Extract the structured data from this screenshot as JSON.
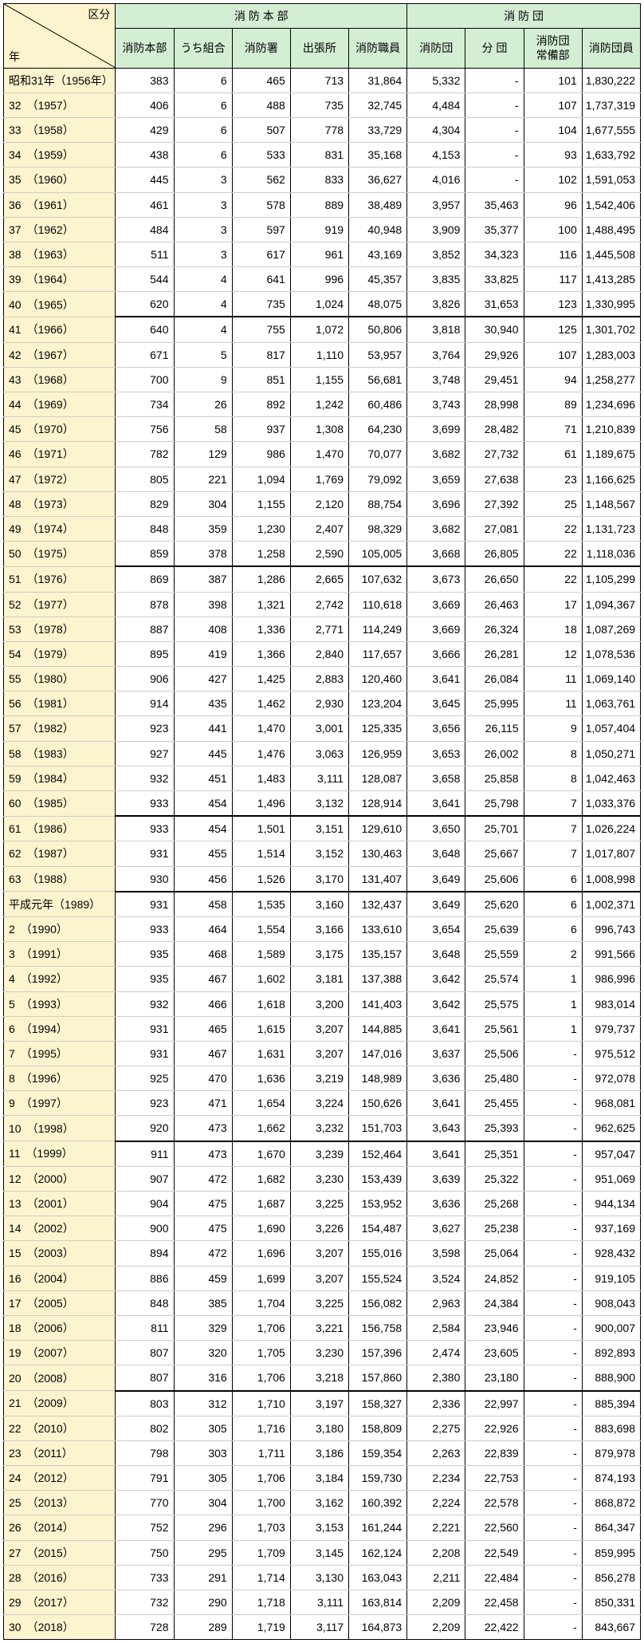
{
  "header": {
    "diag_top": "区分",
    "diag_bottom": "年",
    "group1": "消 防 本 部",
    "group2": "消 防 団",
    "cols": [
      "消防本部",
      "うち組合",
      "消防署",
      "出張所",
      "消防職員",
      "消防団",
      "分 団",
      "消防団\n常備部",
      "消防団員"
    ]
  },
  "separators": [
    10,
    20,
    30,
    33,
    43,
    53
  ],
  "rows": [
    {
      "y": "昭和31年（1956年）",
      "v": [
        "383",
        "6",
        "465",
        "713",
        "31,864",
        "5,332",
        "-",
        "101",
        "1,830,222"
      ]
    },
    {
      "y": "32　（1957）",
      "v": [
        "406",
        "6",
        "488",
        "735",
        "32,745",
        "4,484",
        "-",
        "107",
        "1,737,319"
      ]
    },
    {
      "y": "33　（1958）",
      "v": [
        "429",
        "6",
        "507",
        "778",
        "33,729",
        "4,304",
        "-",
        "104",
        "1,677,555"
      ]
    },
    {
      "y": "34　（1959）",
      "v": [
        "438",
        "6",
        "533",
        "831",
        "35,168",
        "4,153",
        "-",
        "93",
        "1,633,792"
      ]
    },
    {
      "y": "35　（1960）",
      "v": [
        "445",
        "3",
        "562",
        "833",
        "36,627",
        "4,016",
        "-",
        "102",
        "1,591,053"
      ]
    },
    {
      "y": "36　（1961）",
      "v": [
        "461",
        "3",
        "578",
        "889",
        "38,489",
        "3,957",
        "35,463",
        "96",
        "1,542,406"
      ]
    },
    {
      "y": "37　（1962）",
      "v": [
        "484",
        "3",
        "597",
        "919",
        "40,948",
        "3,909",
        "35,377",
        "100",
        "1,488,495"
      ]
    },
    {
      "y": "38　（1963）",
      "v": [
        "511",
        "3",
        "617",
        "961",
        "43,169",
        "3,852",
        "34,323",
        "116",
        "1,445,508"
      ]
    },
    {
      "y": "39　（1964）",
      "v": [
        "544",
        "4",
        "641",
        "996",
        "45,357",
        "3,835",
        "33,825",
        "117",
        "1,413,285"
      ]
    },
    {
      "y": "40　（1965）",
      "v": [
        "620",
        "4",
        "735",
        "1,024",
        "48,075",
        "3,826",
        "31,653",
        "123",
        "1,330,995"
      ]
    },
    {
      "y": "41　（1966）",
      "v": [
        "640",
        "4",
        "755",
        "1,072",
        "50,806",
        "3,818",
        "30,940",
        "125",
        "1,301,702"
      ]
    },
    {
      "y": "42　（1967）",
      "v": [
        "671",
        "5",
        "817",
        "1,110",
        "53,957",
        "3,764",
        "29,926",
        "107",
        "1,283,003"
      ]
    },
    {
      "y": "43　（1968）",
      "v": [
        "700",
        "9",
        "851",
        "1,155",
        "56,681",
        "3,748",
        "29,451",
        "94",
        "1,258,277"
      ]
    },
    {
      "y": "44　（1969）",
      "v": [
        "734",
        "26",
        "892",
        "1,242",
        "60,486",
        "3,743",
        "28,998",
        "89",
        "1,234,696"
      ]
    },
    {
      "y": "45　（1970）",
      "v": [
        "756",
        "58",
        "937",
        "1,308",
        "64,230",
        "3,699",
        "28,482",
        "71",
        "1,210,839"
      ]
    },
    {
      "y": "46　（1971）",
      "v": [
        "782",
        "129",
        "986",
        "1,470",
        "70,077",
        "3,682",
        "27,732",
        "61",
        "1,189,675"
      ]
    },
    {
      "y": "47　（1972）",
      "v": [
        "805",
        "221",
        "1,094",
        "1,769",
        "79,092",
        "3,659",
        "27,638",
        "23",
        "1,166,625"
      ]
    },
    {
      "y": "48　（1973）",
      "v": [
        "829",
        "304",
        "1,155",
        "2,120",
        "88,754",
        "3,696",
        "27,392",
        "25",
        "1,148,567"
      ]
    },
    {
      "y": "49　（1974）",
      "v": [
        "848",
        "359",
        "1,230",
        "2,407",
        "98,329",
        "3,682",
        "27,081",
        "22",
        "1,131,723"
      ]
    },
    {
      "y": "50　（1975）",
      "v": [
        "859",
        "378",
        "1,258",
        "2,590",
        "105,005",
        "3,668",
        "26,805",
        "22",
        "1,118,036"
      ]
    },
    {
      "y": "51　（1976）",
      "v": [
        "869",
        "387",
        "1,286",
        "2,665",
        "107,632",
        "3,673",
        "26,650",
        "22",
        "1,105,299"
      ]
    },
    {
      "y": "52　（1977）",
      "v": [
        "878",
        "398",
        "1,321",
        "2,742",
        "110,618",
        "3,669",
        "26,463",
        "17",
        "1,094,367"
      ]
    },
    {
      "y": "53　（1978）",
      "v": [
        "887",
        "408",
        "1,336",
        "2,771",
        "114,249",
        "3,669",
        "26,324",
        "18",
        "1,087,269"
      ]
    },
    {
      "y": "54　（1979）",
      "v": [
        "895",
        "419",
        "1,366",
        "2,840",
        "117,657",
        "3,666",
        "26,281",
        "12",
        "1,078,536"
      ]
    },
    {
      "y": "55　（1980）",
      "v": [
        "906",
        "427",
        "1,425",
        "2,883",
        "120,460",
        "3,641",
        "26,084",
        "11",
        "1,069,140"
      ]
    },
    {
      "y": "56　（1981）",
      "v": [
        "914",
        "435",
        "1,462",
        "2,930",
        "123,204",
        "3,645",
        "25,995",
        "11",
        "1,063,761"
      ]
    },
    {
      "y": "57　（1982）",
      "v": [
        "923",
        "441",
        "1,470",
        "3,001",
        "125,335",
        "3,656",
        "26,115",
        "9",
        "1,057,404"
      ]
    },
    {
      "y": "58　（1983）",
      "v": [
        "927",
        "445",
        "1,476",
        "3,063",
        "126,959",
        "3,653",
        "26,002",
        "8",
        "1,050,271"
      ]
    },
    {
      "y": "59　（1984）",
      "v": [
        "932",
        "451",
        "1,483",
        "3,111",
        "128,087",
        "3,658",
        "25,858",
        "8",
        "1,042,463"
      ]
    },
    {
      "y": "60　（1985）",
      "v": [
        "933",
        "454",
        "1,496",
        "3,132",
        "128,914",
        "3,641",
        "25,798",
        "7",
        "1,033,376"
      ]
    },
    {
      "y": "61　（1986）",
      "v": [
        "933",
        "454",
        "1,501",
        "3,151",
        "129,610",
        "3,650",
        "25,701",
        "7",
        "1,026,224"
      ]
    },
    {
      "y": "62　（1987）",
      "v": [
        "931",
        "455",
        "1,514",
        "3,152",
        "130,463",
        "3,648",
        "25,667",
        "7",
        "1,017,807"
      ]
    },
    {
      "y": "63　（1988）",
      "v": [
        "930",
        "456",
        "1,526",
        "3,170",
        "131,407",
        "3,649",
        "25,606",
        "6",
        "1,008,998"
      ]
    },
    {
      "y": "平成元年（1989）",
      "v": [
        "931",
        "458",
        "1,535",
        "3,160",
        "132,437",
        "3,649",
        "25,620",
        "6",
        "1,002,371"
      ]
    },
    {
      "y": "2　（1990）",
      "v": [
        "933",
        "464",
        "1,554",
        "3,166",
        "133,610",
        "3,654",
        "25,639",
        "6",
        "996,743"
      ]
    },
    {
      "y": "3　（1991）",
      "v": [
        "935",
        "468",
        "1,589",
        "3,175",
        "135,157",
        "3,648",
        "25,559",
        "2",
        "991,566"
      ]
    },
    {
      "y": "4　（1992）",
      "v": [
        "935",
        "467",
        "1,602",
        "3,181",
        "137,388",
        "3,642",
        "25,574",
        "1",
        "986,996"
      ]
    },
    {
      "y": "5　（1993）",
      "v": [
        "932",
        "466",
        "1,618",
        "3,200",
        "141,403",
        "3,642",
        "25,575",
        "1",
        "983,014"
      ]
    },
    {
      "y": "6　（1994）",
      "v": [
        "931",
        "465",
        "1,615",
        "3,207",
        "144,885",
        "3,641",
        "25,561",
        "1",
        "979,737"
      ]
    },
    {
      "y": "7　（1995）",
      "v": [
        "931",
        "467",
        "1,631",
        "3,207",
        "147,016",
        "3,637",
        "25,506",
        "-",
        "975,512"
      ]
    },
    {
      "y": "8　（1996）",
      "v": [
        "925",
        "470",
        "1,636",
        "3,219",
        "148,989",
        "3,636",
        "25,480",
        "-",
        "972,078"
      ]
    },
    {
      "y": "9　（1997）",
      "v": [
        "923",
        "471",
        "1,654",
        "3,224",
        "150,626",
        "3,641",
        "25,455",
        "-",
        "968,081"
      ]
    },
    {
      "y": "10　（1998）",
      "v": [
        "920",
        "473",
        "1,662",
        "3,232",
        "151,703",
        "3,643",
        "25,393",
        "-",
        "962,625"
      ]
    },
    {
      "y": "11　（1999）",
      "v": [
        "911",
        "473",
        "1,670",
        "3,239",
        "152,464",
        "3,641",
        "25,351",
        "-",
        "957,047"
      ]
    },
    {
      "y": "12　（2000）",
      "v": [
        "907",
        "472",
        "1,682",
        "3,230",
        "153,439",
        "3,639",
        "25,322",
        "-",
        "951,069"
      ]
    },
    {
      "y": "13　（2001）",
      "v": [
        "904",
        "475",
        "1,687",
        "3,225",
        "153,952",
        "3,636",
        "25,268",
        "-",
        "944,134"
      ]
    },
    {
      "y": "14　（2002）",
      "v": [
        "900",
        "475",
        "1,690",
        "3,226",
        "154,487",
        "3,627",
        "25,238",
        "-",
        "937,169"
      ]
    },
    {
      "y": "15　（2003）",
      "v": [
        "894",
        "472",
        "1,696",
        "3,207",
        "155,016",
        "3,598",
        "25,064",
        "-",
        "928,432"
      ]
    },
    {
      "y": "16　（2004）",
      "v": [
        "886",
        "459",
        "1,699",
        "3,207",
        "155,524",
        "3,524",
        "24,852",
        "-",
        "919,105"
      ]
    },
    {
      "y": "17　（2005）",
      "v": [
        "848",
        "385",
        "1,704",
        "3,225",
        "156,082",
        "2,963",
        "24,384",
        "-",
        "908,043"
      ]
    },
    {
      "y": "18　（2006）",
      "v": [
        "811",
        "329",
        "1,706",
        "3,221",
        "156,758",
        "2,584",
        "23,946",
        "-",
        "900,007"
      ]
    },
    {
      "y": "19　（2007）",
      "v": [
        "807",
        "320",
        "1,705",
        "3,230",
        "157,396",
        "2,474",
        "23,605",
        "-",
        "892,893"
      ]
    },
    {
      "y": "20　（2008）",
      "v": [
        "807",
        "316",
        "1,706",
        "3,218",
        "157,860",
        "2,380",
        "23,180",
        "-",
        "888,900"
      ]
    },
    {
      "y": "21　（2009）",
      "v": [
        "803",
        "312",
        "1,710",
        "3,197",
        "158,327",
        "2,336",
        "22,997",
        "-",
        "885,394"
      ]
    },
    {
      "y": "22　（2010）",
      "v": [
        "802",
        "305",
        "1,716",
        "3,180",
        "158,809",
        "2,275",
        "22,926",
        "-",
        "883,698"
      ]
    },
    {
      "y": "23　（2011）",
      "v": [
        "798",
        "303",
        "1,711",
        "3,186",
        "159,354",
        "2,263",
        "22,839",
        "-",
        "879,978"
      ]
    },
    {
      "y": "24　（2012）",
      "v": [
        "791",
        "305",
        "1,706",
        "3,184",
        "159,730",
        "2,234",
        "22,753",
        "-",
        "874,193"
      ]
    },
    {
      "y": "25　（2013）",
      "v": [
        "770",
        "304",
        "1,700",
        "3,162",
        "160,392",
        "2,224",
        "22,578",
        "-",
        "868,872"
      ]
    },
    {
      "y": "26　（2014）",
      "v": [
        "752",
        "296",
        "1,703",
        "3,153",
        "161,244",
        "2,221",
        "22,560",
        "-",
        "864,347"
      ]
    },
    {
      "y": "27　（2015）",
      "v": [
        "750",
        "295",
        "1,709",
        "3,145",
        "162,124",
        "2,208",
        "22,549",
        "-",
        "859,995"
      ]
    },
    {
      "y": "28　（2016）",
      "v": [
        "733",
        "291",
        "1,714",
        "3,130",
        "163,043",
        "2,211",
        "22,484",
        "-",
        "856,278"
      ]
    },
    {
      "y": "29　（2017）",
      "v": [
        "732",
        "290",
        "1,718",
        "3,111",
        "163,814",
        "2,209",
        "22,458",
        "-",
        "850,331"
      ]
    },
    {
      "y": "30　（2018）",
      "v": [
        "728",
        "289",
        "1,719",
        "3,117",
        "164,873",
        "2,209",
        "22,422",
        "-",
        "843,667"
      ]
    }
  ]
}
